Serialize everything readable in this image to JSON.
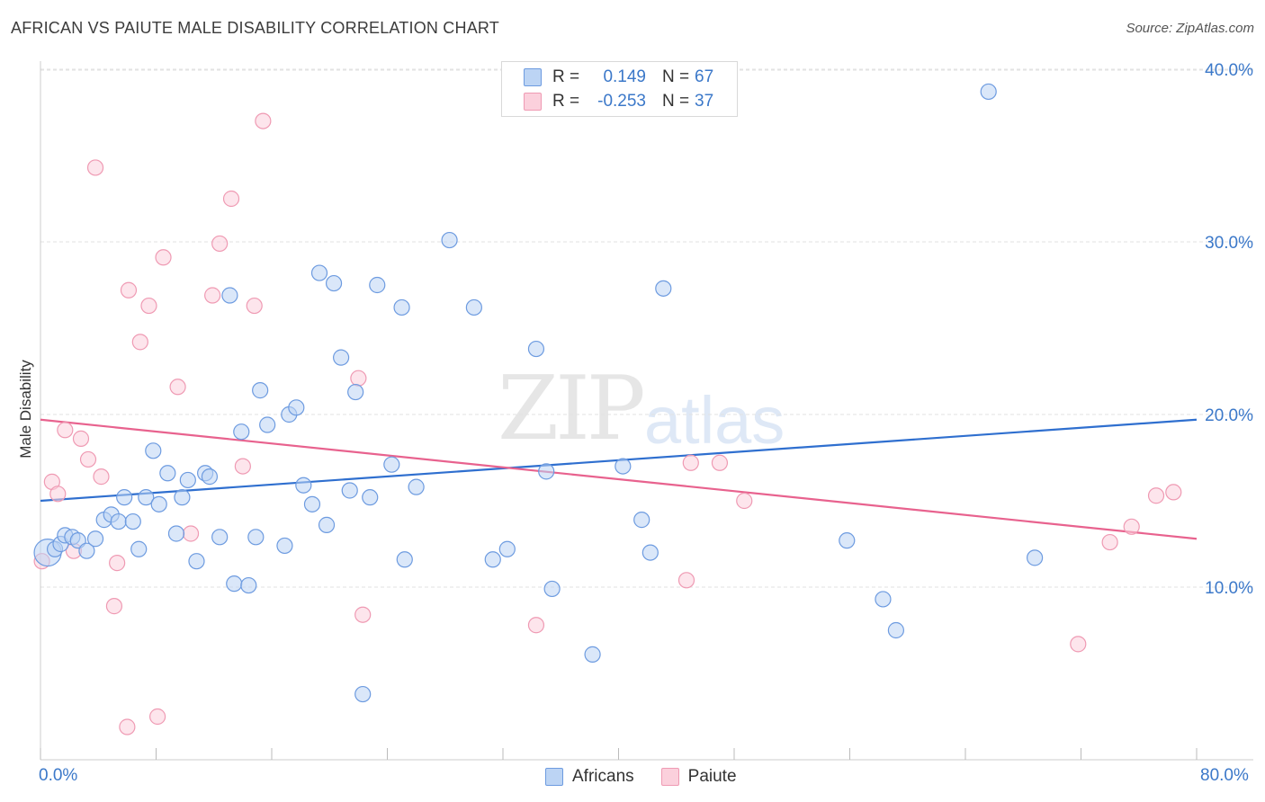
{
  "header": {
    "title": "AFRICAN VS PAIUTE MALE DISABILITY CORRELATION CHART",
    "source": "Source: ZipAtlas.com"
  },
  "watermark": {
    "zip": "ZIP",
    "atlas": "atlas"
  },
  "legend_top": {
    "rows": [
      {
        "r_label": "R =",
        "r_value": "0.149",
        "n_label": "N =",
        "n_value": "67"
      },
      {
        "r_label": "R =",
        "r_value": "-0.253",
        "n_label": "N =",
        "n_value": "37"
      }
    ]
  },
  "legend_bottom": {
    "items": [
      "Africans",
      "Paiute"
    ]
  },
  "colors": {
    "africans_fill": "#bcd4f4",
    "africans_stroke": "#6d9be0",
    "africans_line": "#2f6fcf",
    "paiute_fill": "#fbd0dc",
    "paiute_stroke": "#ef9ab3",
    "paiute_line": "#e8628e",
    "tick_label": "#3b78c9",
    "grid": "#e2e2e2"
  },
  "chart_data": {
    "type": "scatter",
    "title": "AFRICAN VS PAIUTE MALE DISABILITY CORRELATION CHART",
    "xlabel": "",
    "ylabel": "Male Disability",
    "xlim": [
      0,
      80
    ],
    "ylim": [
      0,
      42
    ],
    "x_tick_labels": [
      "0.0%",
      "80.0%"
    ],
    "y_ticks": [
      10,
      20,
      30,
      40
    ],
    "y_tick_labels": [
      "10.0%",
      "20.0%",
      "30.0%",
      "40.0%"
    ],
    "series": [
      {
        "name": "Africans",
        "r": 0.149,
        "n": 67,
        "trend": {
          "x": [
            0,
            80
          ],
          "y": [
            15.0,
            19.7
          ]
        },
        "points": [
          {
            "x": 0.5,
            "y": 12.0,
            "big": true
          },
          {
            "x": 1.0,
            "y": 12.2
          },
          {
            "x": 1.4,
            "y": 12.5
          },
          {
            "x": 1.7,
            "y": 13.0
          },
          {
            "x": 2.2,
            "y": 12.9
          },
          {
            "x": 2.6,
            "y": 12.7
          },
          {
            "x": 3.2,
            "y": 12.1
          },
          {
            "x": 3.8,
            "y": 12.8
          },
          {
            "x": 4.4,
            "y": 13.9
          },
          {
            "x": 4.9,
            "y": 14.2
          },
          {
            "x": 5.4,
            "y": 13.8
          },
          {
            "x": 5.8,
            "y": 15.2
          },
          {
            "x": 6.4,
            "y": 13.8
          },
          {
            "x": 6.8,
            "y": 12.2
          },
          {
            "x": 7.3,
            "y": 15.2
          },
          {
            "x": 7.8,
            "y": 17.9
          },
          {
            "x": 8.2,
            "y": 14.8
          },
          {
            "x": 8.8,
            "y": 16.6
          },
          {
            "x": 9.4,
            "y": 13.1
          },
          {
            "x": 9.8,
            "y": 15.2
          },
          {
            "x": 10.2,
            "y": 16.2
          },
          {
            "x": 10.8,
            "y": 11.5
          },
          {
            "x": 11.4,
            "y": 16.6
          },
          {
            "x": 11.7,
            "y": 16.4
          },
          {
            "x": 12.4,
            "y": 12.9
          },
          {
            "x": 13.1,
            "y": 26.9
          },
          {
            "x": 13.4,
            "y": 10.2
          },
          {
            "x": 13.9,
            "y": 19.0
          },
          {
            "x": 14.4,
            "y": 10.1
          },
          {
            "x": 14.9,
            "y": 12.9
          },
          {
            "x": 15.2,
            "y": 21.4
          },
          {
            "x": 15.7,
            "y": 19.4
          },
          {
            "x": 16.9,
            "y": 12.4
          },
          {
            "x": 17.2,
            "y": 20.0
          },
          {
            "x": 17.7,
            "y": 20.4
          },
          {
            "x": 18.2,
            "y": 15.9
          },
          {
            "x": 18.8,
            "y": 14.8
          },
          {
            "x": 19.3,
            "y": 28.2
          },
          {
            "x": 19.8,
            "y": 13.6
          },
          {
            "x": 20.3,
            "y": 27.6
          },
          {
            "x": 20.8,
            "y": 23.3
          },
          {
            "x": 21.4,
            "y": 15.6
          },
          {
            "x": 21.8,
            "y": 21.3
          },
          {
            "x": 22.8,
            "y": 15.2
          },
          {
            "x": 23.3,
            "y": 27.5
          },
          {
            "x": 22.3,
            "y": 3.8
          },
          {
            "x": 24.3,
            "y": 17.1
          },
          {
            "x": 25.0,
            "y": 26.2
          },
          {
            "x": 25.2,
            "y": 11.6
          },
          {
            "x": 26.0,
            "y": 15.8
          },
          {
            "x": 28.3,
            "y": 30.1
          },
          {
            "x": 30.0,
            "y": 26.2
          },
          {
            "x": 31.3,
            "y": 11.6
          },
          {
            "x": 32.3,
            "y": 12.2
          },
          {
            "x": 34.3,
            "y": 23.8
          },
          {
            "x": 35.0,
            "y": 16.7
          },
          {
            "x": 35.4,
            "y": 9.9
          },
          {
            "x": 38.2,
            "y": 6.1
          },
          {
            "x": 40.3,
            "y": 17.0
          },
          {
            "x": 41.6,
            "y": 13.9
          },
          {
            "x": 42.2,
            "y": 12.0
          },
          {
            "x": 43.1,
            "y": 27.3
          },
          {
            "x": 55.8,
            "y": 12.7
          },
          {
            "x": 58.3,
            "y": 9.3
          },
          {
            "x": 59.2,
            "y": 7.5
          },
          {
            "x": 65.6,
            "y": 38.7
          },
          {
            "x": 68.8,
            "y": 11.7
          }
        ]
      },
      {
        "name": "Paiute",
        "r": -0.253,
        "n": 37,
        "trend": {
          "x": [
            0,
            80
          ],
          "y": [
            19.7,
            12.8
          ]
        },
        "points": [
          {
            "x": 0.1,
            "y": 11.5
          },
          {
            "x": 0.8,
            "y": 16.1
          },
          {
            "x": 1.2,
            "y": 15.4
          },
          {
            "x": 1.7,
            "y": 19.1
          },
          {
            "x": 2.3,
            "y": 12.1
          },
          {
            "x": 2.8,
            "y": 18.6
          },
          {
            "x": 3.3,
            "y": 17.4
          },
          {
            "x": 3.8,
            "y": 34.3
          },
          {
            "x": 4.2,
            "y": 16.4
          },
          {
            "x": 5.1,
            "y": 8.9
          },
          {
            "x": 5.3,
            "y": 11.4
          },
          {
            "x": 6.0,
            "y": 1.9
          },
          {
            "x": 6.1,
            "y": 27.2
          },
          {
            "x": 6.9,
            "y": 24.2
          },
          {
            "x": 7.5,
            "y": 26.3
          },
          {
            "x": 8.1,
            "y": 2.5
          },
          {
            "x": 8.5,
            "y": 29.1
          },
          {
            "x": 9.5,
            "y": 21.6
          },
          {
            "x": 10.4,
            "y": 13.1
          },
          {
            "x": 11.9,
            "y": 26.9
          },
          {
            "x": 12.4,
            "y": 29.9
          },
          {
            "x": 13.2,
            "y": 32.5
          },
          {
            "x": 14.0,
            "y": 17.0
          },
          {
            "x": 14.8,
            "y": 26.3
          },
          {
            "x": 15.4,
            "y": 37.0
          },
          {
            "x": 22.0,
            "y": 22.1
          },
          {
            "x": 22.3,
            "y": 8.4
          },
          {
            "x": 34.3,
            "y": 7.8
          },
          {
            "x": 44.7,
            "y": 10.4
          },
          {
            "x": 45.0,
            "y": 17.2
          },
          {
            "x": 47.0,
            "y": 17.2
          },
          {
            "x": 48.7,
            "y": 15.0
          },
          {
            "x": 71.8,
            "y": 6.7
          },
          {
            "x": 74.0,
            "y": 12.6
          },
          {
            "x": 75.5,
            "y": 13.5
          },
          {
            "x": 77.2,
            "y": 15.3
          },
          {
            "x": 78.4,
            "y": 15.5
          }
        ]
      }
    ]
  }
}
